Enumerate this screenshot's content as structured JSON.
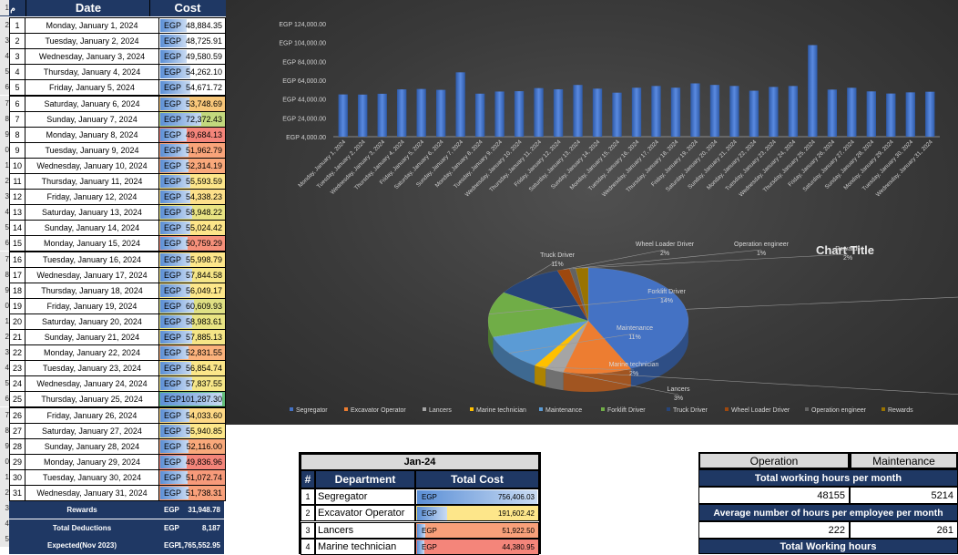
{
  "left_table": {
    "header_index": "م",
    "header_date": "Date",
    "header_cost": "Cost",
    "currency": "EGP",
    "rows": [
      {
        "n": "1",
        "date": "Monday, January 1, 2024",
        "cost": "48,884.35",
        "fill": 0.42,
        "color": "#ffffff"
      },
      {
        "n": "2",
        "date": "Tuesday, January 2, 2024",
        "cost": "48,725.91",
        "fill": 0.42,
        "color": "#ffffff"
      },
      {
        "n": "3",
        "date": "Wednesday, January 3, 2024",
        "cost": "49,580.59",
        "fill": 0.43,
        "color": "#ffffff"
      },
      {
        "n": "4",
        "date": "Thursday, January 4, 2024",
        "cost": "54,262.10",
        "fill": 0.48,
        "color": "#ffffff"
      },
      {
        "n": "5",
        "date": "Friday, January 5, 2024",
        "cost": "54,671.72",
        "fill": 0.48,
        "color": "#ffffff"
      },
      {
        "n": "6",
        "date": "Saturday, January 6, 2024",
        "cost": "53,748.69",
        "fill": 0.47,
        "color": "#f8c77a"
      },
      {
        "n": "7",
        "date": "Sunday, January 7, 2024",
        "cost": "72,372.43",
        "fill": 0.66,
        "color": "#c3d97e"
      },
      {
        "n": "8",
        "date": "Monday, January 8, 2024",
        "cost": "49,684.13",
        "fill": 0.43,
        "color": "#f4857a"
      },
      {
        "n": "9",
        "date": "Tuesday, January 9, 2024",
        "cost": "51,962.79",
        "fill": 0.45,
        "color": "#f9a47a"
      },
      {
        "n": "10",
        "date": "Wednesday, January 10, 2024",
        "cost": "52,314.19",
        "fill": 0.45,
        "color": "#f9a87b"
      },
      {
        "n": "11",
        "date": "Thursday, January 11, 2024",
        "cost": "55,593.59",
        "fill": 0.49,
        "color": "#fde68a"
      },
      {
        "n": "12",
        "date": "Friday, January 12, 2024",
        "cost": "54,338.23",
        "fill": 0.48,
        "color": "#fde08a"
      },
      {
        "n": "13",
        "date": "Saturday, January 13, 2024",
        "cost": "58,948.22",
        "fill": 0.52,
        "color": "#e9e483"
      },
      {
        "n": "14",
        "date": "Sunday, January 14, 2024",
        "cost": "55,024.42",
        "fill": 0.48,
        "color": "#fde589"
      },
      {
        "n": "15",
        "date": "Monday, January 15, 2024",
        "cost": "50,759.29",
        "fill": 0.44,
        "color": "#f6907a"
      },
      {
        "n": "16",
        "date": "Tuesday, January 16, 2024",
        "cost": "55,998.79",
        "fill": 0.49,
        "color": "#fde78a"
      },
      {
        "n": "17",
        "date": "Wednesday, January 17, 2024",
        "cost": "57,844.58",
        "fill": 0.51,
        "color": "#f5e587"
      },
      {
        "n": "18",
        "date": "Thursday, January 18, 2024",
        "cost": "56,049.17",
        "fill": 0.49,
        "color": "#fde78a"
      },
      {
        "n": "19",
        "date": "Friday, January 19, 2024",
        "cost": "60,609.93",
        "fill": 0.54,
        "color": "#dfe084"
      },
      {
        "n": "20",
        "date": "Saturday, January 20, 2024",
        "cost": "58,983.61",
        "fill": 0.52,
        "color": "#e9e483"
      },
      {
        "n": "21",
        "date": "Sunday, January 21, 2024",
        "cost": "57,885.13",
        "fill": 0.51,
        "color": "#f5e587"
      },
      {
        "n": "22",
        "date": "Monday, January 22, 2024",
        "cost": "52,831.55",
        "fill": 0.46,
        "color": "#fbb27c"
      },
      {
        "n": "23",
        "date": "Tuesday, January 23, 2024",
        "cost": "56,854.74",
        "fill": 0.5,
        "color": "#fbe689"
      },
      {
        "n": "24",
        "date": "Wednesday, January 24, 2024",
        "cost": "57,837.55",
        "fill": 0.51,
        "color": "#f5e587"
      },
      {
        "n": "25",
        "date": "Thursday, January 25, 2024",
        "cost": "101,287.30",
        "fill": 1.0,
        "color": "#63be7b"
      },
      {
        "n": "26",
        "date": "Friday, January 26, 2024",
        "cost": "54,033.60",
        "fill": 0.47,
        "color": "#fdd885"
      },
      {
        "n": "27",
        "date": "Saturday, January 27, 2024",
        "cost": "55,940.85",
        "fill": 0.49,
        "color": "#fde78a"
      },
      {
        "n": "28",
        "date": "Sunday, January 28, 2024",
        "cost": "52,116.00",
        "fill": 0.45,
        "color": "#f9a97b"
      },
      {
        "n": "29",
        "date": "Monday, January 29, 2024",
        "cost": "49,836.96",
        "fill": 0.43,
        "color": "#f4857a"
      },
      {
        "n": "30",
        "date": "Tuesday, January 30, 2024",
        "cost": "51,072.74",
        "fill": 0.44,
        "color": "#f79a7a"
      },
      {
        "n": "31",
        "date": "Wednesday, January 31, 2024",
        "cost": "51,738.31",
        "fill": 0.45,
        "color": "#f8a07a"
      }
    ],
    "footer": [
      {
        "label": "Rewards",
        "currency": "EGP",
        "amount": "31,948.78"
      },
      {
        "label": "Total Deductions",
        "currency": "EGP",
        "amount": "8,187"
      },
      {
        "label": "Expected(Nov 2023)",
        "currency": "EGP",
        "amount": "1,765,552.95"
      }
    ],
    "sheet_row_numbers": [
      "1",
      "2",
      "3",
      "4",
      "5",
      "6",
      "7",
      "8",
      "9",
      "0",
      "1",
      "2",
      "3",
      "4",
      "5",
      "6",
      "7",
      "8",
      "9",
      "0",
      "1",
      "2",
      "3",
      "4",
      "5",
      "6",
      "7",
      "8",
      "9",
      "0",
      "1",
      "2",
      "3",
      "4",
      "5"
    ]
  },
  "chart_data": [
    {
      "type": "bar",
      "title": "",
      "ylim": [
        4000,
        124000
      ],
      "y_ticks": [
        "EGP 4,000.00",
        "EGP 24,000.00",
        "EGP 44,000.00",
        "EGP 64,000.00",
        "EGP 84,000.00",
        "EGP 104,000.00",
        "EGP 124,000.00"
      ],
      "categories": [
        "Monday, January 1, 2024",
        "Tuesday, January 2, 2024",
        "Wednesday, January 3, 2024",
        "Thursday, January 4, 2024",
        "Friday, January 5, 2024",
        "Saturday, January 6, 2024",
        "Sunday, January 7, 2024",
        "Monday, January 8, 2024",
        "Tuesday, January 9, 2024",
        "Wednesday, January 10, 2024",
        "Thursday, January 11, 2024",
        "Friday, January 12, 2024",
        "Saturday, January 13, 2024",
        "Sunday, January 14, 2024",
        "Monday, January 15, 2024",
        "Tuesday, January 16, 2024",
        "Wednesday, January 17, 2024",
        "Thursday, January 18, 2024",
        "Friday, January 19, 2024",
        "Saturday, January 20, 2024",
        "Sunday, January 21, 2024",
        "Monday, January 22, 2024",
        "Tuesday, January 23, 2024",
        "Wednesday, January 24, 2024",
        "Thursday, January 25, 2024",
        "Friday, January 26, 2024",
        "Saturday, January 27, 2024",
        "Sunday, January 28, 2024",
        "Monday, January 29, 2024",
        "Tuesday, January 30, 2024",
        "Wednesday, January 31, 2024"
      ],
      "values": [
        48884.35,
        48725.91,
        49580.59,
        54262.1,
        54671.72,
        53748.69,
        72372.43,
        49684.13,
        51962.79,
        52314.19,
        55593.59,
        54338.23,
        58948.22,
        55024.42,
        50759.29,
        55998.79,
        57844.58,
        56049.17,
        60609.93,
        58983.61,
        57885.13,
        52831.55,
        56854.74,
        57837.55,
        101287.3,
        54033.6,
        55940.85,
        52116.0,
        49836.96,
        51072.74,
        51738.31
      ],
      "color": "#4472c4",
      "grid": false
    },
    {
      "type": "pie",
      "title": "Chart Title",
      "legend": "bottom",
      "slices": [
        {
          "name": "Segregator",
          "percent": 43,
          "label": "43%",
          "color": "#4472c4"
        },
        {
          "name": "Excavator Operator",
          "percent": 11,
          "label": "11%",
          "color": "#ed7d31"
        },
        {
          "name": "Lancers",
          "percent": 3,
          "label": "3%",
          "color": "#a5a5a5"
        },
        {
          "name": "Marine technician",
          "percent": 2,
          "label": "2%",
          "color": "#ffc000"
        },
        {
          "name": "Maintenance",
          "percent": 11,
          "label": "11%",
          "color": "#5b9bd5"
        },
        {
          "name": "Forklift Driver",
          "percent": 14,
          "label": "14%",
          "color": "#70ad47"
        },
        {
          "name": "Truck Driver",
          "percent": 11,
          "label": "11%",
          "color": "#264478"
        },
        {
          "name": "Wheel Loader Driver",
          "percent": 2,
          "label": "2%",
          "color": "#9e480e"
        },
        {
          "name": "Operation engineer",
          "percent": 1,
          "label": "1%",
          "color": "#636363"
        },
        {
          "name": "Rewards",
          "percent": 2,
          "label": "2%",
          "color": "#997300"
        }
      ]
    }
  ],
  "dept_table": {
    "title": "Jan-24",
    "col_index": "#",
    "col_dept": "Department",
    "col_cost": "Total Cost",
    "currency": "EGP",
    "rows": [
      {
        "n": "1",
        "dept": "Segregator",
        "cost": "756,406.03",
        "fill": 1.0,
        "color": "#ffffff"
      },
      {
        "n": "2",
        "dept": "Excavator Operator",
        "cost": "191,602.42",
        "fill": 0.25,
        "color": "#fde68a"
      },
      {
        "n": "3",
        "dept": "Lancers",
        "cost": "51,922.50",
        "fill": 0.07,
        "color": "#f8a07a"
      },
      {
        "n": "4",
        "dept": "Marine technician",
        "cost": "44,380.95",
        "fill": 0.06,
        "color": "#f4857a"
      }
    ]
  },
  "hours_table": {
    "col_operation": "Operation",
    "col_maintenance": "Maintenance",
    "row1_label": "Total working hours per month",
    "row1_op": "48155",
    "row1_mt": "5214",
    "row2_label": "Average number of hours per employee per month",
    "row2_op": "222",
    "row2_mt": "261",
    "row3_label": "Total Working hours"
  }
}
